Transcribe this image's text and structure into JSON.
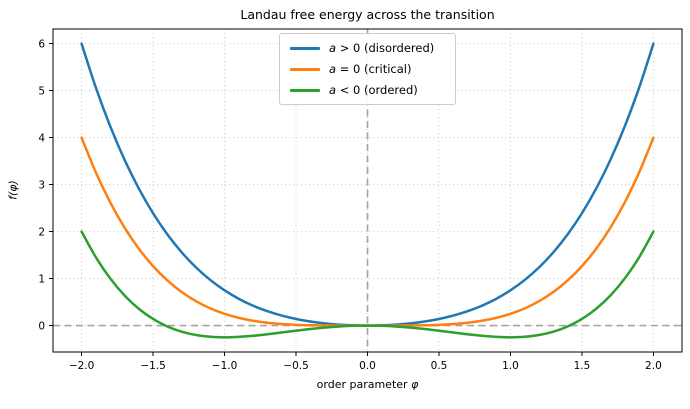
{
  "chart_data": {
    "type": "line",
    "title": "Landau free energy across the transition",
    "xlabel_text": "order parameter ",
    "xlabel_symbol": "φ",
    "ylabel": "f(φ)",
    "xlim": [
      -2.2,
      2.2
    ],
    "ylim": [
      -0.5625,
      6.3125
    ],
    "x_ticks": {
      "values": [
        -2.0,
        -1.5,
        -1.0,
        -0.5,
        0.0,
        0.5,
        1.0,
        1.5,
        2.0
      ],
      "labels": [
        "−2.0",
        "−1.5",
        "−1.0",
        "−0.5",
        "0.0",
        "0.5",
        "1.0",
        "1.5",
        "2.0"
      ]
    },
    "y_ticks": {
      "values": [
        0,
        1,
        2,
        3,
        4,
        5,
        6
      ],
      "labels": [
        "0",
        "1",
        "2",
        "3",
        "4",
        "5",
        "6"
      ]
    },
    "grid": {
      "style": "dotted",
      "color": "#c9c9c9"
    },
    "zero_lines": {
      "h_at_y": 0,
      "v_at_x": 0,
      "style": "dashed",
      "color": "#a6a6a6"
    },
    "axis_color": "#000000",
    "legend": {
      "position": "upper center",
      "border_color": "#cccccc"
    },
    "x": [
      -2.0,
      -1.9,
      -1.8,
      -1.7,
      -1.6,
      -1.5,
      -1.4,
      -1.3,
      -1.2,
      -1.1,
      -1.0,
      -0.9,
      -0.8,
      -0.7,
      -0.6,
      -0.5,
      -0.4,
      -0.3,
      -0.2,
      -0.1,
      0.0,
      0.1,
      0.2,
      0.3,
      0.4,
      0.5,
      0.6,
      0.7,
      0.8,
      0.9,
      1.0,
      1.1,
      1.2,
      1.3,
      1.4,
      1.5,
      1.6,
      1.7,
      1.8,
      1.9,
      2.0
    ],
    "series": [
      {
        "id": "disordered",
        "var": "a",
        "rest": " > 0 (disordered)",
        "name": "a > 0 (disordered)",
        "color": "#1f77b4",
        "values": [
          6.0,
          5.063,
          4.2444,
          3.533,
          2.9184,
          2.3906,
          1.9404,
          1.559,
          1.2384,
          0.971,
          0.75,
          0.569,
          0.4224,
          0.305,
          0.2124,
          0.1406,
          0.0864,
          0.047,
          0.0204,
          0.005,
          0.0,
          0.005,
          0.0204,
          0.047,
          0.0864,
          0.1406,
          0.2124,
          0.305,
          0.4224,
          0.569,
          0.75,
          0.971,
          1.2384,
          1.559,
          1.9404,
          2.3906,
          2.9184,
          3.533,
          4.2444,
          5.063,
          6.0
        ]
      },
      {
        "id": "critical",
        "var": "a",
        "rest": " = 0 (critical)",
        "name": "a = 0 (critical)",
        "color": "#ff7f0e",
        "values": [
          4.0,
          3.258,
          2.6244,
          2.088,
          1.6384,
          1.2656,
          0.9604,
          0.714,
          0.5184,
          0.366,
          0.25,
          0.164,
          0.1024,
          0.06,
          0.0324,
          0.0156,
          0.0064,
          0.002,
          0.0004,
          0.0,
          0.0,
          0.0,
          0.0004,
          0.002,
          0.0064,
          0.0156,
          0.0324,
          0.06,
          0.1024,
          0.164,
          0.25,
          0.366,
          0.5184,
          0.714,
          0.9604,
          1.2656,
          1.6384,
          2.088,
          2.6244,
          3.258,
          4.0
        ]
      },
      {
        "id": "ordered",
        "var": "a",
        "rest": " < 0 (ordered)",
        "name": "a < 0 (ordered)",
        "color": "#2ca02c",
        "values": [
          2.0,
          1.453,
          1.0044,
          0.643,
          0.3584,
          0.1406,
          -0.0196,
          -0.131,
          -0.2016,
          -0.239,
          -0.25,
          -0.241,
          -0.2176,
          -0.185,
          -0.1476,
          -0.1094,
          -0.0736,
          -0.043,
          -0.0196,
          -0.005,
          0.0,
          -0.005,
          -0.0196,
          -0.043,
          -0.0736,
          -0.1094,
          -0.1476,
          -0.185,
          -0.2176,
          -0.241,
          -0.25,
          -0.239,
          -0.2016,
          -0.131,
          -0.0196,
          0.1406,
          0.3584,
          0.643,
          1.0044,
          1.453,
          2.0
        ]
      }
    ]
  }
}
